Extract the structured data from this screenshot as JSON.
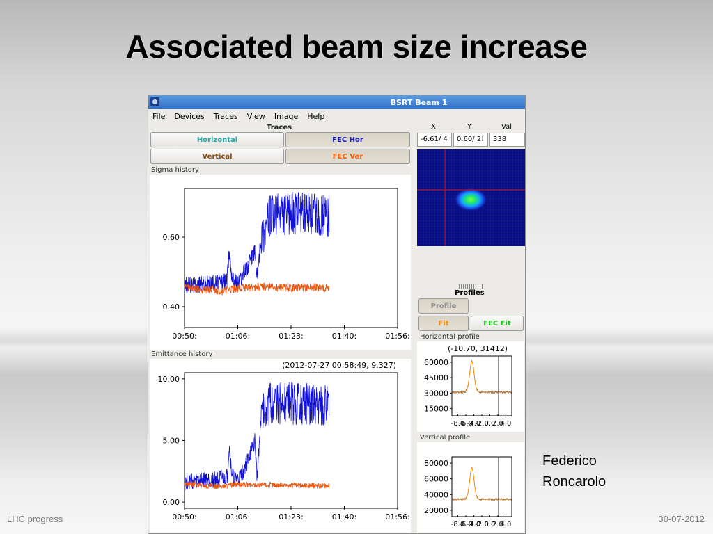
{
  "slide": {
    "title": "Associated beam size increase",
    "author_line1": "Federico",
    "author_line2": "Roncarolo",
    "footer_left": "LHC progress",
    "footer_right": "30-07-2012"
  },
  "window": {
    "title": "BSRT Beam 1",
    "menu": [
      "File",
      "Devices",
      "Traces",
      "View",
      "Image",
      "Help"
    ]
  },
  "traces": {
    "label": "Traces",
    "horizontal": "Horizontal",
    "fec_hor": "FEC Hor",
    "vertical": "Vertical",
    "fec_ver": "FEC Ver"
  },
  "cursor": {
    "x_label": "X",
    "y_label": "Y",
    "val_label": "Val",
    "x_value": "-6.61/ 4",
    "y_value": "0.60/ 2!",
    "val_value": "338"
  },
  "profiles": {
    "label": "Profiles",
    "profile_btn": "Profile",
    "fit_btn": "Fit",
    "fec_fit_btn": "FEC Fit",
    "horizontal_label": "Horizontal profile",
    "horizontal_readout": "(-10.70, 31412)",
    "vertical_label": "Vertical profile"
  },
  "colors": {
    "horizontal_trace": "#1010d8",
    "vertical_trace": "#e8560f",
    "horizontal_btn_text": "#2aa8a8",
    "fec_hor_text": "#1818cc",
    "vertical_btn_text": "#8a4b12",
    "fec_ver_text": "#ff5a00",
    "fit_text": "#ff8c00",
    "fec_fit_text": "#18c418",
    "crosshair": "#d01818"
  },
  "chart_data": [
    {
      "type": "line",
      "panel_label": "Sigma history",
      "x_ticks": [
        "00:50:",
        "01:06:",
        "01:23:",
        "01:40:",
        "01:56:"
      ],
      "y_ticks": [
        "0.40",
        "0.60"
      ],
      "ylim": [
        0.34,
        0.74
      ],
      "series": [
        {
          "x": [
            0,
            0.06,
            0.12,
            0.18,
            0.2,
            0.21,
            0.22,
            0.23,
            0.25,
            0.26,
            0.3,
            0.33,
            0.34,
            0.36,
            0.38,
            0.4,
            0.5,
            0.6,
            0.68
          ],
          "y": [
            0.46,
            0.464,
            0.468,
            0.472,
            0.476,
            0.56,
            0.5,
            0.476,
            0.47,
            0.478,
            0.52,
            0.56,
            0.48,
            0.6,
            0.63,
            0.66,
            0.67,
            0.665,
            0.66
          ]
        },
        {
          "x": [
            0,
            0.06,
            0.12,
            0.18,
            0.24,
            0.3,
            0.36,
            0.42,
            0.5,
            0.6,
            0.68
          ],
          "y": [
            0.458,
            0.452,
            0.448,
            0.446,
            0.452,
            0.455,
            0.456,
            0.456,
            0.454,
            0.455,
            0.454
          ]
        }
      ]
    },
    {
      "type": "line",
      "panel_label": "Emittance history",
      "readout": "(2012-07-27 00:58:49, 9.327)",
      "x_ticks": [
        "00:50:",
        "01:06:",
        "01:23:",
        "01:40:",
        "01:56:"
      ],
      "y_ticks": [
        "0.00",
        "5.00",
        "10.00"
      ],
      "ylim": [
        -0.5,
        10.5
      ],
      "series": [
        {
          "x": [
            0,
            0.06,
            0.12,
            0.18,
            0.2,
            0.21,
            0.22,
            0.23,
            0.25,
            0.26,
            0.3,
            0.33,
            0.34,
            0.36,
            0.38,
            0.4,
            0.5,
            0.6,
            0.68
          ],
          "y": [
            1.6,
            1.7,
            1.8,
            1.9,
            2.0,
            4.5,
            2.5,
            1.9,
            1.8,
            1.9,
            3.5,
            5.0,
            2.0,
            7.0,
            7.8,
            8.0,
            8.0,
            8.0,
            7.8
          ]
        },
        {
          "x": [
            0,
            0.06,
            0.12,
            0.18,
            0.24,
            0.3,
            0.36,
            0.42,
            0.5,
            0.6,
            0.68
          ],
          "y": [
            1.5,
            1.4,
            1.3,
            1.3,
            1.4,
            1.4,
            1.4,
            1.4,
            1.35,
            1.35,
            1.35
          ]
        }
      ]
    },
    {
      "type": "line",
      "panel_label": "Horizontal profile",
      "x_ticks": [
        "-8.0",
        "-6.0",
        "-4.0",
        "-2.0",
        "0.0",
        "2.0",
        "4.0"
      ],
      "y_ticks": [
        "15000",
        "30000",
        "45000",
        "60000"
      ],
      "ylim": [
        8000,
        66000
      ],
      "peak_x": -4.5,
      "peak_y": 61000,
      "baseline": 31000,
      "cursor_x": 2.2
    },
    {
      "type": "line",
      "panel_label": "Vertical profile",
      "x_ticks": [
        "-8.0",
        "-6.0",
        "-4.0",
        "-2.0",
        "0.0",
        "2.0",
        "4.0"
      ],
      "y_ticks": [
        "20000",
        "40000",
        "60000",
        "80000"
      ],
      "ylim": [
        12000,
        88000
      ],
      "peak_x": -4.5,
      "peak_y": 74000,
      "baseline": 34000,
      "cursor_x": 2.2
    }
  ]
}
